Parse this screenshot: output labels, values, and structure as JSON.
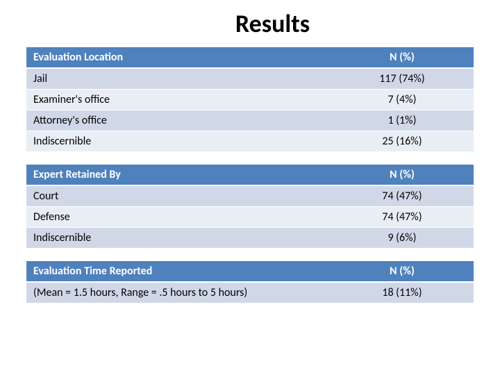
{
  "title": "Results",
  "colors": {
    "header_bg": "#4f81bd",
    "header_text": "#ffffff",
    "row_odd_bg": "#d0d8e8",
    "row_even_bg": "#e9edf4",
    "page_bg": "#ffffff",
    "text": "#000000"
  },
  "layout": {
    "column_widths": [
      "68%",
      "32%"
    ],
    "title_fontsize": 36,
    "table_fontsize": 16
  },
  "tables": [
    {
      "header": {
        "left": "Evaluation Location",
        "right": "N (%)"
      },
      "rows": [
        {
          "left": "Jail",
          "right": "117 (74%)"
        },
        {
          "left": "Examiner's office",
          "right": "7 (4%)"
        },
        {
          "left": "Attorney's office",
          "right": "1 (1%)"
        },
        {
          "left": "Indiscernible",
          "right": "25 (16%)"
        }
      ]
    },
    {
      "header": {
        "left": "Expert Retained By",
        "right": "N (%)"
      },
      "rows": [
        {
          "left": "Court",
          "right": "74 (47%)"
        },
        {
          "left": "Defense",
          "right": "74 (47%)"
        },
        {
          "left": "Indiscernible",
          "right": "9 (6%)"
        }
      ]
    },
    {
      "header": {
        "left": "Evaluation Time Reported",
        "right": "N (%)"
      },
      "rows": [
        {
          "left": "(Mean = 1.5 hours, Range = .5 hours to 5 hours)",
          "right": "18 (11%)"
        }
      ]
    }
  ]
}
